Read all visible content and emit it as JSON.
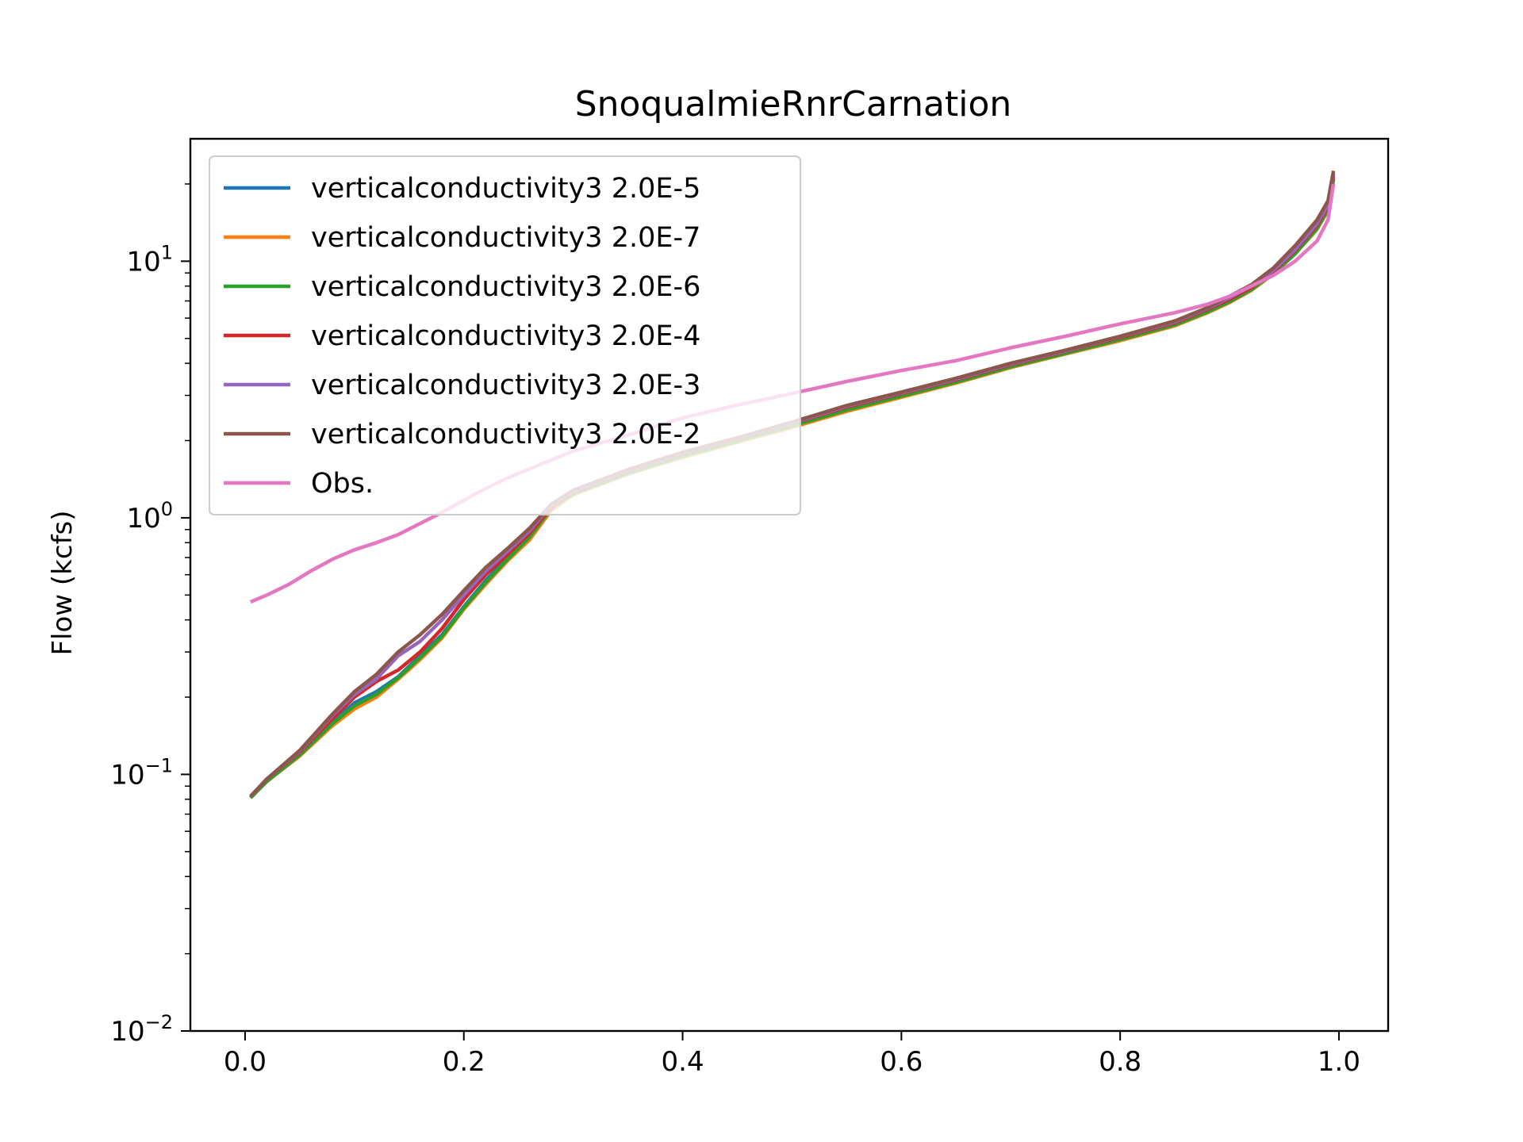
{
  "chart_data": {
    "type": "line",
    "title": "SnoqualmieRnrCarnation",
    "xlabel": "",
    "ylabel": "Flow (kcfs)",
    "xlim": [
      -0.05,
      1.045
    ],
    "ylim": [
      0.01,
      30
    ],
    "yscale": "log",
    "xticks": [
      "0.0",
      "0.2",
      "0.4",
      "0.6",
      "0.8",
      "1.0"
    ],
    "xtick_values": [
      0.0,
      0.2,
      0.4,
      0.6,
      0.8,
      1.0
    ],
    "yticks": [
      {
        "value": 0.01,
        "base": "10",
        "exp": "−2"
      },
      {
        "value": 0.1,
        "base": "10",
        "exp": "−1"
      },
      {
        "value": 1,
        "base": "10",
        "exp": "0"
      },
      {
        "value": 10,
        "base": "10",
        "exp": "1"
      }
    ],
    "grid": false,
    "legend_position": "top-left",
    "series": [
      {
        "name": "verticalconductivity3 2.0E-5",
        "color": "#1f77b4",
        "x": [
          0.005,
          0.02,
          0.05,
          0.08,
          0.1,
          0.12,
          0.14,
          0.16,
          0.18,
          0.2,
          0.22,
          0.24,
          0.26,
          0.28,
          0.3,
          0.35,
          0.4,
          0.45,
          0.5,
          0.55,
          0.6,
          0.65,
          0.7,
          0.75,
          0.8,
          0.85,
          0.88,
          0.9,
          0.92,
          0.94,
          0.96,
          0.98,
          0.99,
          0.995
        ],
        "y": [
          0.082,
          0.095,
          0.12,
          0.16,
          0.19,
          0.21,
          0.24,
          0.29,
          0.35,
          0.45,
          0.57,
          0.7,
          0.85,
          1.1,
          1.25,
          1.5,
          1.75,
          2.0,
          2.3,
          2.65,
          3.0,
          3.4,
          3.9,
          4.4,
          5.0,
          5.7,
          6.4,
          7.0,
          7.8,
          9.0,
          10.8,
          13.5,
          16.0,
          21.0
        ]
      },
      {
        "name": "verticalconductivity3 2.0E-7",
        "color": "#ff7f0e",
        "x": [
          0.005,
          0.02,
          0.05,
          0.08,
          0.1,
          0.12,
          0.14,
          0.16,
          0.18,
          0.2,
          0.22,
          0.24,
          0.26,
          0.28,
          0.3,
          0.35,
          0.4,
          0.45,
          0.5,
          0.55,
          0.6,
          0.65,
          0.7,
          0.75,
          0.8,
          0.85,
          0.88,
          0.9,
          0.92,
          0.94,
          0.96,
          0.98,
          0.99,
          0.995
        ],
        "y": [
          0.081,
          0.094,
          0.118,
          0.155,
          0.18,
          0.2,
          0.235,
          0.28,
          0.34,
          0.44,
          0.55,
          0.68,
          0.82,
          1.07,
          1.23,
          1.48,
          1.72,
          1.97,
          2.25,
          2.6,
          2.95,
          3.35,
          3.85,
          4.35,
          4.9,
          5.6,
          6.3,
          6.9,
          7.7,
          8.9,
          10.7,
          13.3,
          15.8,
          20.8
        ]
      },
      {
        "name": "verticalconductivity3 2.0E-6",
        "color": "#2ca02c",
        "x": [
          0.005,
          0.02,
          0.05,
          0.08,
          0.1,
          0.12,
          0.14,
          0.16,
          0.18,
          0.2,
          0.22,
          0.24,
          0.26,
          0.28,
          0.3,
          0.35,
          0.4,
          0.45,
          0.5,
          0.55,
          0.6,
          0.65,
          0.7,
          0.75,
          0.8,
          0.85,
          0.88,
          0.9,
          0.92,
          0.94,
          0.96,
          0.98,
          0.99,
          0.995
        ],
        "y": [
          0.081,
          0.094,
          0.119,
          0.158,
          0.185,
          0.205,
          0.238,
          0.285,
          0.345,
          0.445,
          0.56,
          0.69,
          0.84,
          1.09,
          1.24,
          1.49,
          1.74,
          1.99,
          2.28,
          2.63,
          2.98,
          3.38,
          3.88,
          4.38,
          4.95,
          5.65,
          6.35,
          6.95,
          7.75,
          8.95,
          10.7,
          13.4,
          15.9,
          20.9
        ]
      },
      {
        "name": "verticalconductivity3 2.0E-4",
        "color": "#d62728",
        "x": [
          0.005,
          0.02,
          0.05,
          0.08,
          0.1,
          0.12,
          0.14,
          0.16,
          0.18,
          0.2,
          0.22,
          0.24,
          0.26,
          0.28,
          0.3,
          0.35,
          0.4,
          0.45,
          0.5,
          0.55,
          0.6,
          0.65,
          0.7,
          0.75,
          0.8,
          0.85,
          0.88,
          0.9,
          0.92,
          0.94,
          0.96,
          0.98,
          0.99,
          0.995
        ],
        "y": [
          0.082,
          0.096,
          0.122,
          0.165,
          0.2,
          0.23,
          0.255,
          0.3,
          0.37,
          0.48,
          0.6,
          0.72,
          0.87,
          1.1,
          1.26,
          1.52,
          1.78,
          2.03,
          2.33,
          2.7,
          3.05,
          3.45,
          3.95,
          4.45,
          5.05,
          5.75,
          6.5,
          7.1,
          7.9,
          9.1,
          11.0,
          13.8,
          16.3,
          21.5
        ]
      },
      {
        "name": "verticalconductivity3 2.0E-3",
        "color": "#9467bd",
        "x": [
          0.005,
          0.02,
          0.05,
          0.08,
          0.1,
          0.12,
          0.14,
          0.16,
          0.18,
          0.2,
          0.22,
          0.24,
          0.26,
          0.28,
          0.3,
          0.35,
          0.4,
          0.45,
          0.5,
          0.55,
          0.6,
          0.65,
          0.7,
          0.75,
          0.8,
          0.85,
          0.88,
          0.9,
          0.92,
          0.94,
          0.96,
          0.98,
          0.99,
          0.995
        ],
        "y": [
          0.082,
          0.096,
          0.123,
          0.17,
          0.205,
          0.235,
          0.29,
          0.33,
          0.4,
          0.5,
          0.62,
          0.74,
          0.89,
          1.12,
          1.27,
          1.53,
          1.79,
          2.04,
          2.34,
          2.72,
          3.07,
          3.47,
          3.97,
          4.47,
          5.08,
          5.8,
          6.55,
          7.2,
          8.0,
          9.2,
          11.1,
          14.0,
          16.6,
          22.0
        ]
      },
      {
        "name": "verticalconductivity3 2.0E-2",
        "color": "#8c564b",
        "x": [
          0.005,
          0.02,
          0.05,
          0.08,
          0.1,
          0.12,
          0.14,
          0.16,
          0.18,
          0.2,
          0.22,
          0.24,
          0.26,
          0.28,
          0.3,
          0.35,
          0.4,
          0.45,
          0.5,
          0.55,
          0.6,
          0.65,
          0.7,
          0.75,
          0.8,
          0.85,
          0.88,
          0.9,
          0.92,
          0.94,
          0.96,
          0.98,
          0.99,
          0.995
        ],
        "y": [
          0.082,
          0.096,
          0.124,
          0.172,
          0.21,
          0.245,
          0.3,
          0.35,
          0.42,
          0.52,
          0.64,
          0.76,
          0.91,
          1.13,
          1.28,
          1.54,
          1.8,
          2.05,
          2.36,
          2.74,
          3.09,
          3.5,
          4.0,
          4.5,
          5.1,
          5.85,
          6.6,
          7.3,
          8.1,
          9.4,
          11.5,
          14.5,
          17.2,
          22.5
        ]
      },
      {
        "name": "Obs.",
        "color": "#e377c2",
        "x": [
          0.005,
          0.02,
          0.04,
          0.06,
          0.08,
          0.1,
          0.12,
          0.14,
          0.16,
          0.18,
          0.2,
          0.22,
          0.24,
          0.26,
          0.28,
          0.3,
          0.35,
          0.4,
          0.45,
          0.5,
          0.55,
          0.6,
          0.65,
          0.7,
          0.75,
          0.8,
          0.85,
          0.88,
          0.9,
          0.92,
          0.94,
          0.96,
          0.98,
          0.99,
          0.995
        ],
        "y": [
          0.47,
          0.5,
          0.55,
          0.62,
          0.69,
          0.75,
          0.8,
          0.86,
          0.95,
          1.05,
          1.17,
          1.3,
          1.43,
          1.55,
          1.68,
          1.82,
          2.1,
          2.45,
          2.75,
          3.05,
          3.4,
          3.75,
          4.1,
          4.6,
          5.1,
          5.7,
          6.3,
          6.8,
          7.3,
          8.0,
          8.8,
          10.0,
          12.0,
          14.5,
          20.0
        ]
      }
    ]
  }
}
